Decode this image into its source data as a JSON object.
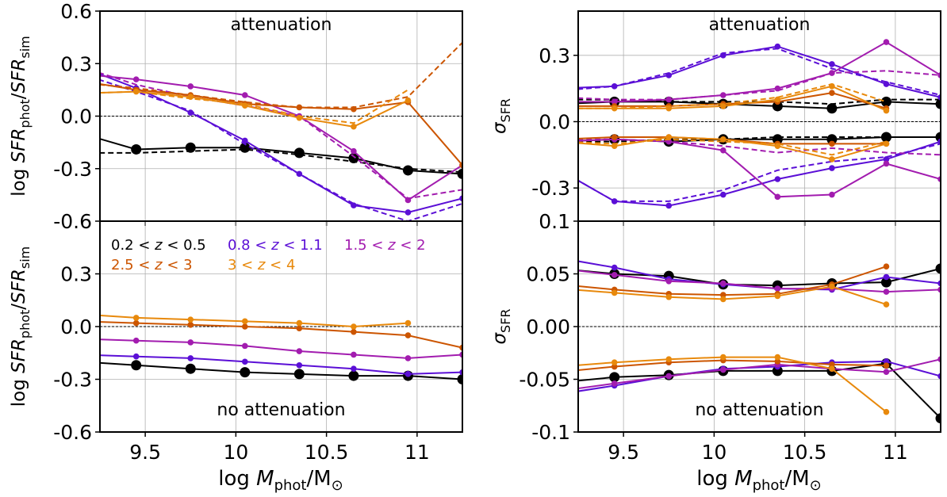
{
  "colors": {
    "z1": "#000000",
    "z2": "#5b0fd6",
    "z3": "#a21caf",
    "z4": "#cc5500",
    "z5": "#e8890c"
  },
  "legend": [
    {
      "key": "z1",
      "label": "0.2 < z < 0.5"
    },
    {
      "key": "z2",
      "label": "0.8 < z < 1.1"
    },
    {
      "key": "z3",
      "label": "1.5 < z < 2"
    },
    {
      "key": "z4",
      "label": "2.5 < z < 3"
    },
    {
      "key": "z5",
      "label": "3 < z < 4"
    }
  ],
  "x_axis": {
    "label": "log M_phot/M_⊙",
    "ticks": [
      9.5,
      10,
      10.5,
      11
    ],
    "tick_labels": [
      "9.5",
      "10",
      "10.5",
      "11"
    ],
    "xlim": [
      9.25,
      11.25
    ]
  },
  "chart_data": [
    {
      "type": "line",
      "panel": "top-left",
      "annotation": "attenuation",
      "ylabel": "log SFR_phot/SFR_sim",
      "ylim": [
        -0.6,
        0.6
      ],
      "yticks": [
        -0.6,
        -0.3,
        0.0,
        0.3,
        0.6
      ],
      "ytick_labels": [
        "-0.6",
        "-0.3",
        "0.0",
        "0.3",
        "0.6"
      ],
      "x": [
        9.15,
        9.45,
        9.75,
        10.05,
        10.35,
        10.65,
        10.95,
        11.25
      ],
      "series": [
        {
          "key": "z1",
          "style": "solid",
          "big": true,
          "values": [
            -0.1,
            -0.19,
            -0.18,
            -0.18,
            -0.21,
            -0.24,
            -0.31,
            -0.33
          ]
        },
        {
          "key": "z1",
          "style": "dashed",
          "big": false,
          "values": [
            -0.21,
            -0.21,
            -0.2,
            -0.19,
            -0.22,
            -0.26,
            -0.3,
            -0.32
          ]
        },
        {
          "key": "z2",
          "style": "solid",
          "big": false,
          "values": [
            0.28,
            0.16,
            0.02,
            -0.14,
            -0.33,
            -0.51,
            -0.55,
            -0.47
          ]
        },
        {
          "key": "z2",
          "style": "dashed",
          "big": false,
          "values": [
            0.24,
            0.14,
            0.03,
            -0.16,
            -0.33,
            -0.5,
            -0.6,
            -0.5
          ]
        },
        {
          "key": "z3",
          "style": "solid",
          "big": false,
          "values": [
            0.24,
            0.21,
            0.17,
            0.12,
            0.0,
            -0.2,
            -0.48,
            -0.28
          ]
        },
        {
          "key": "z3",
          "style": "dashed",
          "big": false,
          "values": [
            0.28,
            0.18,
            0.11,
            0.06,
            0.0,
            -0.23,
            -0.47,
            -0.42
          ]
        },
        {
          "key": "z4",
          "style": "solid",
          "big": false,
          "values": [
            0.2,
            0.15,
            0.12,
            0.07,
            0.05,
            0.04,
            0.08,
            -0.28
          ]
        },
        {
          "key": "z4",
          "style": "dashed",
          "big": false,
          "values": [
            0.19,
            0.16,
            0.12,
            0.08,
            0.05,
            0.05,
            0.11,
            0.42
          ]
        },
        {
          "key": "z5",
          "style": "solid",
          "big": false,
          "values": [
            0.13,
            0.14,
            0.11,
            0.06,
            -0.01,
            -0.06,
            0.09,
            null
          ]
        },
        {
          "key": "z5",
          "style": "dashed",
          "big": false,
          "values": [
            0.13,
            0.14,
            0.1,
            0.07,
            0.0,
            -0.04,
            0.15,
            null
          ]
        }
      ]
    },
    {
      "type": "line",
      "panel": "bottom-left",
      "annotation": "no attenuation",
      "ylabel": "log SFR_phot/SFR_sim",
      "ylim": [
        -0.6,
        0.6
      ],
      "yticks": [
        -0.6,
        -0.3,
        0.0,
        0.3
      ],
      "ytick_labels": [
        "-0.6",
        "-0.3",
        "0.0",
        "0.3"
      ],
      "x": [
        9.15,
        9.45,
        9.75,
        10.05,
        10.35,
        10.65,
        10.95,
        11.25
      ],
      "series": [
        {
          "key": "z1",
          "style": "solid",
          "big": true,
          "values": [
            -0.2,
            -0.22,
            -0.24,
            -0.26,
            -0.27,
            -0.28,
            -0.28,
            -0.3
          ]
        },
        {
          "key": "z2",
          "style": "solid",
          "big": false,
          "values": [
            -0.16,
            -0.17,
            -0.18,
            -0.2,
            -0.22,
            -0.24,
            -0.27,
            -0.26
          ]
        },
        {
          "key": "z3",
          "style": "solid",
          "big": false,
          "values": [
            -0.07,
            -0.08,
            -0.09,
            -0.11,
            -0.14,
            -0.16,
            -0.18,
            -0.16
          ]
        },
        {
          "key": "z4",
          "style": "solid",
          "big": false,
          "values": [
            0.03,
            0.02,
            0.01,
            0.0,
            -0.01,
            -0.03,
            -0.05,
            -0.12
          ]
        },
        {
          "key": "z5",
          "style": "solid",
          "big": false,
          "values": [
            0.07,
            0.05,
            0.04,
            0.03,
            0.02,
            0.0,
            0.02,
            null
          ]
        }
      ]
    },
    {
      "type": "line",
      "panel": "top-right",
      "annotation": "attenuation",
      "ylabel": "σ_SFR",
      "ylim": [
        -0.45,
        0.5
      ],
      "yticks": [
        -0.3,
        0.0,
        0.3
      ],
      "ytick_labels": [
        "-0.3",
        "0.0",
        "0.3"
      ],
      "x": [
        9.15,
        9.45,
        9.75,
        10.05,
        10.35,
        10.65,
        10.95,
        11.25
      ],
      "series": [
        {
          "key": "z1",
          "style": "solid",
          "big": true,
          "values": [
            0.08,
            0.09,
            0.09,
            0.08,
            0.07,
            0.06,
            0.09,
            0.08
          ]
        },
        {
          "key": "z1",
          "style": "dashed",
          "big": false,
          "values": [
            0.1,
            0.1,
            0.09,
            0.09,
            0.09,
            0.08,
            0.1,
            0.1
          ]
        },
        {
          "key": "z1",
          "style": "solid",
          "big": true,
          "values": [
            -0.09,
            -0.08,
            -0.09,
            -0.08,
            -0.08,
            -0.08,
            -0.07,
            -0.07
          ]
        },
        {
          "key": "z1",
          "style": "dashed",
          "big": false,
          "values": [
            -0.09,
            -0.09,
            -0.08,
            -0.08,
            -0.07,
            -0.07,
            -0.07,
            -0.07
          ]
        },
        {
          "key": "z2",
          "style": "solid",
          "big": false,
          "values": [
            0.15,
            0.16,
            0.21,
            0.3,
            0.34,
            0.26,
            0.17,
            0.11
          ]
        },
        {
          "key": "z2",
          "style": "dashed",
          "big": false,
          "values": [
            0.14,
            0.16,
            0.22,
            0.31,
            0.33,
            0.24,
            0.18,
            0.12
          ]
        },
        {
          "key": "z2",
          "style": "solid",
          "big": false,
          "values": [
            -0.22,
            -0.36,
            -0.38,
            -0.33,
            -0.26,
            -0.21,
            -0.17,
            -0.09
          ]
        },
        {
          "key": "z2",
          "style": "dashed",
          "big": false,
          "values": [
            -0.22,
            -0.36,
            -0.36,
            -0.31,
            -0.22,
            -0.18,
            -0.16,
            -0.1
          ]
        },
        {
          "key": "z3",
          "style": "solid",
          "big": false,
          "values": [
            0.09,
            0.09,
            0.1,
            0.12,
            0.15,
            0.22,
            0.36,
            0.21
          ]
        },
        {
          "key": "z3",
          "style": "dashed",
          "big": false,
          "values": [
            0.11,
            0.1,
            0.1,
            0.12,
            0.14,
            0.22,
            0.23,
            0.21
          ]
        },
        {
          "key": "z3",
          "style": "solid",
          "big": false,
          "values": [
            -0.09,
            -0.08,
            -0.09,
            -0.13,
            -0.34,
            -0.33,
            -0.19,
            -0.26
          ]
        },
        {
          "key": "z3",
          "style": "dashed",
          "big": false,
          "values": [
            -0.08,
            -0.08,
            -0.09,
            -0.11,
            -0.14,
            -0.12,
            -0.14,
            -0.15
          ]
        },
        {
          "key": "z4",
          "style": "solid",
          "big": false,
          "values": [
            0.07,
            0.07,
            0.07,
            0.08,
            0.09,
            0.13,
            0.06,
            null
          ]
        },
        {
          "key": "z4",
          "style": "solid",
          "big": false,
          "values": [
            -0.08,
            -0.07,
            -0.07,
            -0.08,
            -0.1,
            -0.1,
            -0.1,
            null
          ]
        },
        {
          "key": "z5",
          "style": "solid",
          "big": false,
          "values": [
            0.06,
            0.06,
            0.06,
            0.07,
            0.1,
            0.16,
            0.05,
            null
          ]
        },
        {
          "key": "z5",
          "style": "dashed",
          "big": false,
          "values": [
            0.06,
            0.06,
            0.07,
            0.08,
            0.11,
            0.17,
            0.09,
            null
          ]
        },
        {
          "key": "z5",
          "style": "solid",
          "big": false,
          "values": [
            -0.09,
            -0.11,
            -0.07,
            -0.08,
            -0.11,
            -0.17,
            -0.1,
            null
          ]
        },
        {
          "key": "z5",
          "style": "dashed",
          "big": false,
          "values": [
            -0.09,
            -0.1,
            -0.08,
            -0.09,
            -0.1,
            -0.15,
            -0.09,
            null
          ]
        }
      ]
    },
    {
      "type": "line",
      "panel": "bottom-right",
      "annotation": "no attenuation",
      "ylabel": "σ_SFR",
      "ylim": [
        -0.1,
        0.1
      ],
      "yticks": [
        -0.1,
        -0.05,
        0.0,
        0.05,
        0.1
      ],
      "ytick_labels": [
        "-0.1",
        "-0.05",
        "0.00",
        "0.05",
        "0.1"
      ],
      "x": [
        9.15,
        9.45,
        9.75,
        10.05,
        10.35,
        10.65,
        10.95,
        11.25
      ],
      "series": [
        {
          "key": "z1",
          "style": "solid",
          "big": true,
          "values": [
            0.055,
            0.05,
            0.048,
            0.04,
            0.039,
            0.041,
            0.042,
            0.055
          ]
        },
        {
          "key": "z1",
          "style": "solid",
          "big": true,
          "values": [
            -0.053,
            -0.048,
            -0.046,
            -0.042,
            -0.042,
            -0.042,
            -0.035,
            -0.087
          ]
        },
        {
          "key": "z2",
          "style": "solid",
          "big": false,
          "values": [
            0.065,
            0.056,
            0.045,
            0.04,
            0.036,
            0.035,
            0.047,
            0.041
          ]
        },
        {
          "key": "z2",
          "style": "solid",
          "big": false,
          "values": [
            -0.064,
            -0.056,
            -0.047,
            -0.04,
            -0.038,
            -0.034,
            -0.033,
            -0.047
          ]
        },
        {
          "key": "z3",
          "style": "solid",
          "big": false,
          "values": [
            0.055,
            0.049,
            0.043,
            0.041,
            0.036,
            0.036,
            0.033,
            0.035
          ]
        },
        {
          "key": "z3",
          "style": "solid",
          "big": false,
          "values": [
            -0.061,
            -0.054,
            -0.047,
            -0.041,
            -0.036,
            -0.04,
            -0.043,
            -0.031
          ]
        },
        {
          "key": "z4",
          "style": "solid",
          "big": false,
          "values": [
            0.04,
            0.035,
            0.031,
            0.03,
            0.031,
            0.04,
            0.057,
            null
          ]
        },
        {
          "key": "z4",
          "style": "solid",
          "big": false,
          "values": [
            -0.043,
            -0.038,
            -0.034,
            -0.032,
            -0.033,
            -0.036,
            -0.037,
            null
          ]
        },
        {
          "key": "z5",
          "style": "solid",
          "big": false,
          "values": [
            0.036,
            0.032,
            0.028,
            0.026,
            0.029,
            0.038,
            0.021,
            null
          ]
        },
        {
          "key": "z5",
          "style": "solid",
          "big": false,
          "values": [
            -0.038,
            -0.034,
            -0.031,
            -0.029,
            -0.029,
            -0.04,
            -0.081,
            null
          ]
        }
      ]
    }
  ]
}
